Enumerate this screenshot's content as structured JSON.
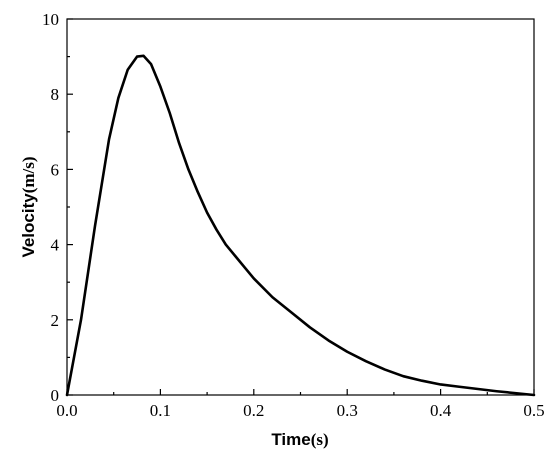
{
  "chart_data": {
    "type": "line",
    "title": "",
    "xlabel": "Time",
    "xlabel_unit": "(s)",
    "ylabel": "Velocity",
    "ylabel_unit": "(m/s)",
    "xlim": [
      0,
      0.5
    ],
    "ylim": [
      0,
      10
    ],
    "x_ticks": [
      "0.0",
      "0.1",
      "0.2",
      "0.3",
      "0.4",
      "0.5"
    ],
    "y_ticks": [
      "0",
      "2",
      "4",
      "6",
      "8",
      "10"
    ],
    "grid": false,
    "legend": "none",
    "line_color": "#000000",
    "series": [
      {
        "x": [
          0.0,
          0.015,
          0.03,
          0.045,
          0.055,
          0.065,
          0.075,
          0.082,
          0.09,
          0.1,
          0.11,
          0.12,
          0.13,
          0.14,
          0.15,
          0.16,
          0.17,
          0.18,
          0.19,
          0.2,
          0.22,
          0.24,
          0.26,
          0.28,
          0.3,
          0.32,
          0.34,
          0.36,
          0.38,
          0.4,
          0.42,
          0.44,
          0.46,
          0.48,
          0.5
        ],
        "y": [
          0.0,
          2.0,
          4.5,
          6.8,
          7.9,
          8.65,
          9.0,
          9.02,
          8.8,
          8.2,
          7.5,
          6.7,
          6.0,
          5.4,
          4.85,
          4.4,
          4.0,
          3.7,
          3.4,
          3.1,
          2.6,
          2.2,
          1.8,
          1.45,
          1.15,
          0.9,
          0.68,
          0.5,
          0.38,
          0.28,
          0.22,
          0.16,
          0.1,
          0.05,
          0.0
        ]
      }
    ]
  }
}
